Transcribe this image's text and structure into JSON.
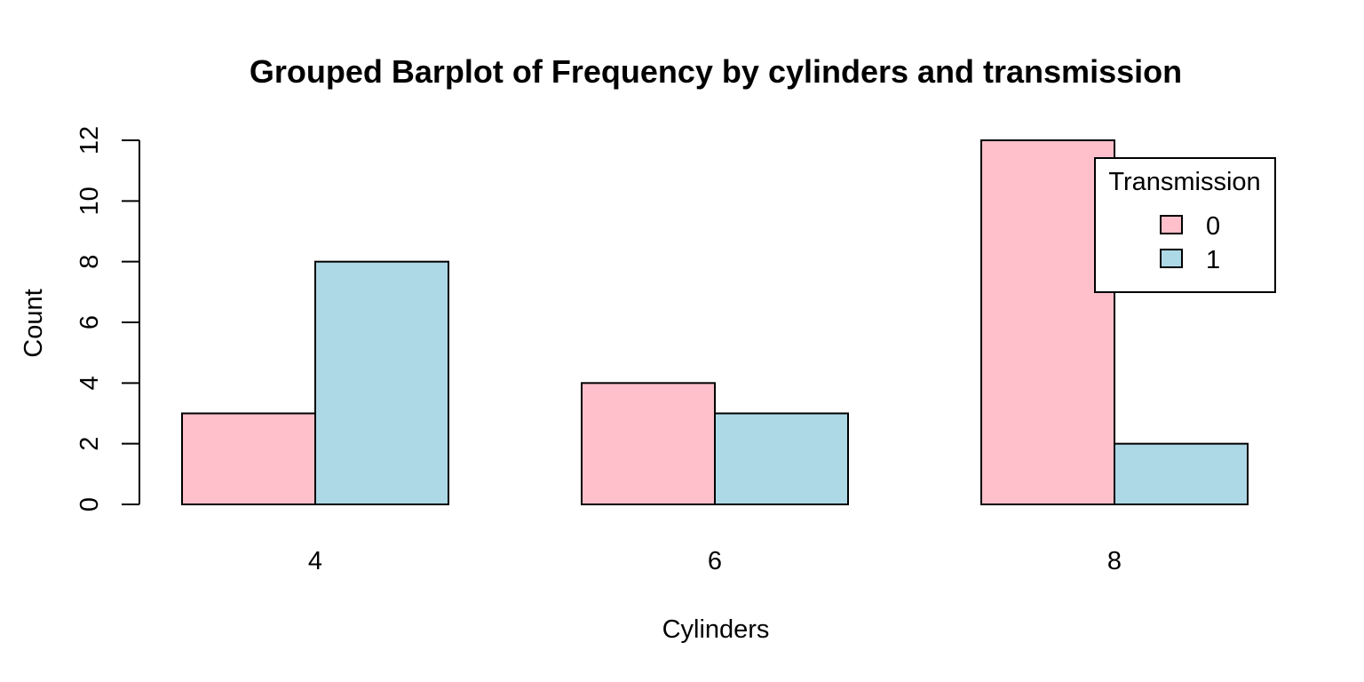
{
  "chart_data": {
    "type": "bar",
    "grouped": true,
    "title": "Grouped Barplot of Frequency by cylinders and transmission",
    "xlabel": "Cylinders",
    "ylabel": "Count",
    "categories": [
      "4",
      "6",
      "8"
    ],
    "ylim": [
      0,
      12
    ],
    "yticks": [
      "0",
      "2",
      "4",
      "6",
      "8",
      "10",
      "12"
    ],
    "grid": false,
    "series": [
      {
        "name": "0",
        "values": [
          3,
          4,
          12
        ],
        "color": "#FFC0CB"
      },
      {
        "name": "1",
        "values": [
          8,
          3,
          2
        ],
        "color": "#ADD8E6"
      }
    ],
    "legend": {
      "title": "Transmission",
      "position": "top-right"
    }
  }
}
